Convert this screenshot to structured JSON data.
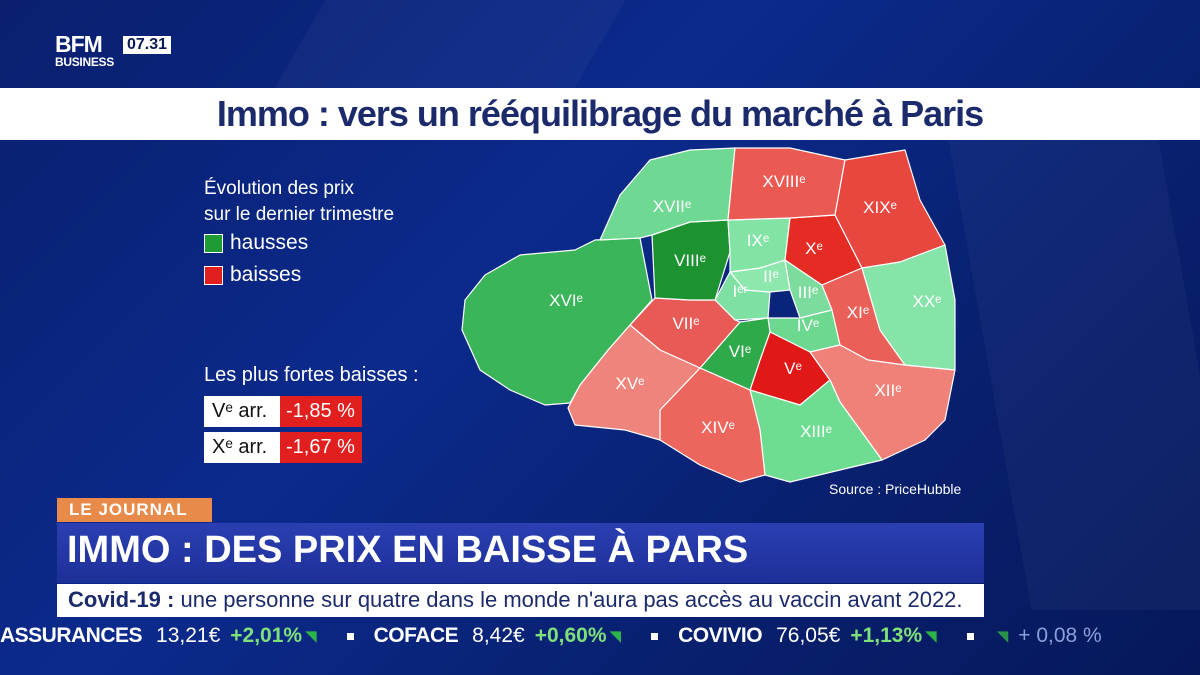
{
  "channel": {
    "logo_text": "BFM",
    "logo_sub": "BUSINESS",
    "time": "07.31"
  },
  "title": "Immo : vers un rééquilibrage du marché à Paris",
  "legend": {
    "title": "Évolution des prix\nsur le dernier trimestre",
    "hausses": "hausses",
    "baisses": "baisses",
    "hausse_color": "#1f9b35",
    "baisse_color": "#e21f1f"
  },
  "strongest": {
    "title": "Les plus fortes baisses :",
    "rows": [
      {
        "arr": "Vᵉ arr.",
        "value": "-1,85 %"
      },
      {
        "arr": "Xᵉ arr.",
        "value": "-1,67 %"
      }
    ]
  },
  "map": {
    "source": "Source : PriceHubble",
    "districts": [
      {
        "id": "I",
        "label": "Iᵉʳ",
        "trend": "hausse",
        "color": "#7fe0a3"
      },
      {
        "id": "II",
        "label": "IIᵉ",
        "trend": "hausse",
        "color": "#8ee7ad"
      },
      {
        "id": "III",
        "label": "IIIᵉ",
        "trend": "hausse",
        "color": "#7cdc9e"
      },
      {
        "id": "IV",
        "label": "IVᵉ",
        "trend": "hausse",
        "color": "#6dd88f"
      },
      {
        "id": "V",
        "label": "Vᵉ",
        "trend": "baisse",
        "color": "#e01818"
      },
      {
        "id": "VI",
        "label": "VIᵉ",
        "trend": "hausse",
        "color": "#2faa4a"
      },
      {
        "id": "VII",
        "label": "VIIᵉ",
        "trend": "baisse",
        "color": "#e85a55"
      },
      {
        "id": "VIII",
        "label": "VIIIᵉ",
        "trend": "hausse",
        "color": "#1d9230"
      },
      {
        "id": "IX",
        "label": "IXᵉ",
        "trend": "hausse",
        "color": "#82e3a4"
      },
      {
        "id": "X",
        "label": "Xᵉ",
        "trend": "baisse",
        "color": "#e42b24"
      },
      {
        "id": "XI",
        "label": "XIᵉ",
        "trend": "baisse",
        "color": "#ea5f57"
      },
      {
        "id": "XII",
        "label": "XIIᵉ",
        "trend": "baisse",
        "color": "#ef8178"
      },
      {
        "id": "XIII",
        "label": "XIIIᵉ",
        "trend": "hausse",
        "color": "#6fdd91"
      },
      {
        "id": "XIV",
        "label": "XIVᵉ",
        "trend": "baisse",
        "color": "#ec665d"
      },
      {
        "id": "XV",
        "label": "XVᵉ",
        "trend": "baisse",
        "color": "#ef847c"
      },
      {
        "id": "XVI",
        "label": "XVIᵉ",
        "trend": "hausse",
        "color": "#3bb55a"
      },
      {
        "id": "XVII",
        "label": "XVIIᵉ",
        "trend": "hausse",
        "color": "#6fd993"
      },
      {
        "id": "XVIII",
        "label": "XVIIIᵉ",
        "trend": "baisse",
        "color": "#ea5a53"
      },
      {
        "id": "XIX",
        "label": "XIXᵉ",
        "trend": "baisse",
        "color": "#e8473f"
      },
      {
        "id": "XX",
        "label": "XXᵉ",
        "trend": "hausse",
        "color": "#86e4a8"
      }
    ]
  },
  "lower_third": {
    "tag": "LE JOURNAL",
    "headline": "IMMO : DES PRIX EN BAISSE À PARS",
    "sub_label": "Covid-19 :",
    "sub_text": " une personne sur quatre dans le monde n'aura pas accès au vaccin avant 2022."
  },
  "ticker": [
    {
      "name": "ASSURANCES",
      "price": "13,21€",
      "change": "+2,01%"
    },
    {
      "name": "COFACE",
      "price": "8,42€",
      "change": "+0,60%"
    },
    {
      "name": "COVIVIO",
      "price": "76,05€",
      "change": "+1,13%"
    },
    {
      "name": "",
      "price": "",
      "change": "+ 0,08 %"
    }
  ]
}
